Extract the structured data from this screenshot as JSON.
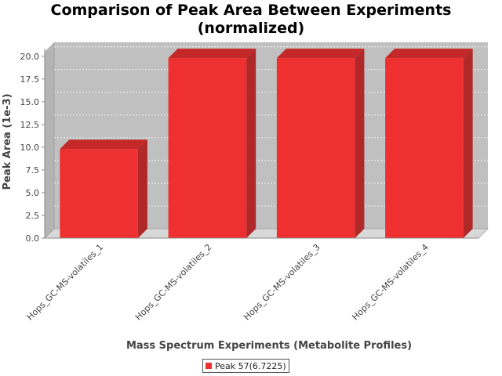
{
  "chart_data": {
    "type": "bar",
    "title_line1": "Comparison of Peak Area Between Experiments",
    "title_line2": "(normalized)",
    "xlabel": "Mass Spectrum Experiments (Metabolite Profiles)",
    "ylabel": "Peak Area (1e-3)",
    "categories": [
      "Hops_GC-MS-volatiles_1",
      "Hops_GC-MS-volatiles_2",
      "Hops_GC-MS-volatiles_3",
      "Hops_GC-MS-volatiles_4"
    ],
    "series": [
      {
        "name": "Peak 57(6.7225)",
        "values": [
          9.8,
          19.8,
          19.8,
          19.8
        ],
        "color": "#ef3030"
      }
    ],
    "ylim": [
      0,
      20.5
    ],
    "yticks": [
      0.0,
      2.5,
      5.0,
      7.5,
      10.0,
      12.5,
      15.0,
      17.5,
      20.0
    ],
    "ytick_labels": [
      "0.0",
      "2.5",
      "5.0",
      "7.5",
      "10.0",
      "12.5",
      "15.0",
      "17.5",
      "20.0"
    ],
    "grid": true,
    "legend_position": "bottom",
    "plot_background": "#c0c0c0"
  }
}
